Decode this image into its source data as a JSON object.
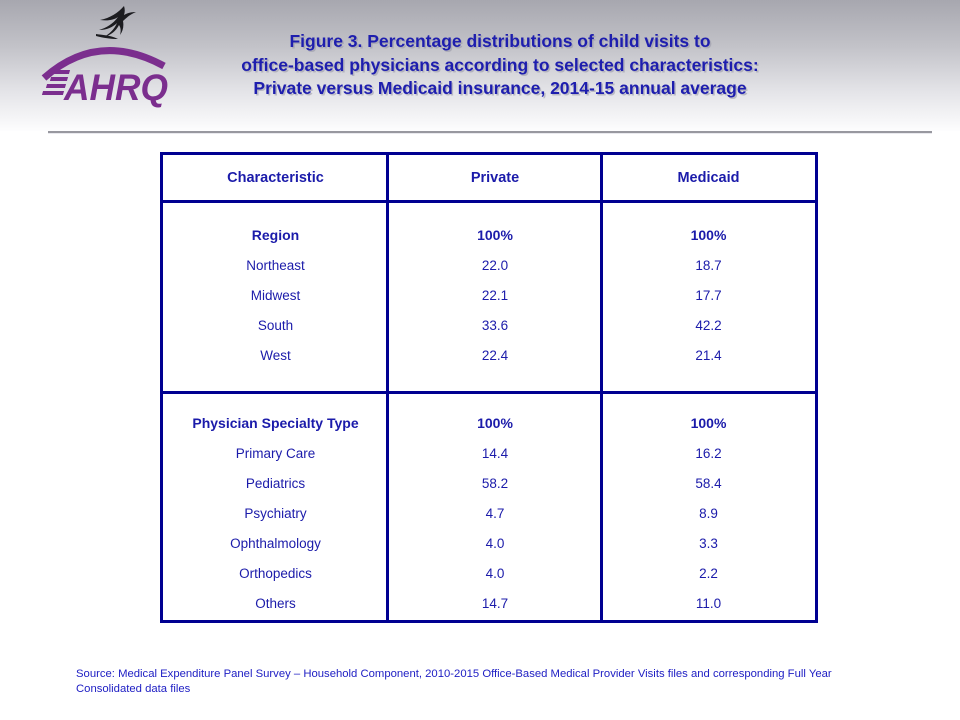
{
  "header": {
    "logo": {
      "wordmark": "AHRQ",
      "eagle_icon": "hhs-eagle-icon"
    },
    "title": "Figure 3. Percentage distributions of child visits to\noffice-based physicians according to selected characteristics:\nPrivate versus Medicaid insurance, 2014-15 annual average"
  },
  "table": {
    "columns": [
      "Characteristic",
      "Private",
      "Medicaid"
    ],
    "sections": [
      {
        "header": {
          "label": "Region",
          "private": "100%",
          "medicaid": "100%"
        },
        "rows": [
          {
            "label": "Northeast",
            "private": "22.0",
            "medicaid": "18.7"
          },
          {
            "label": "Midwest",
            "private": "22.1",
            "medicaid": "17.7"
          },
          {
            "label": "South",
            "private": "33.6",
            "medicaid": "42.2"
          },
          {
            "label": "West",
            "private": "22.4",
            "medicaid": "21.4"
          }
        ]
      },
      {
        "header": {
          "label": "Physician Specialty Type",
          "private": "100%",
          "medicaid": "100%"
        },
        "rows": [
          {
            "label": "Primary Care",
            "private": "14.4",
            "medicaid": "16.2"
          },
          {
            "label": "Pediatrics",
            "private": "58.2",
            "medicaid": "58.4"
          },
          {
            "label": "Psychiatry",
            "private": "4.7",
            "medicaid": "8.9"
          },
          {
            "label": "Ophthalmology",
            "private": "4.0",
            "medicaid": "3.3"
          },
          {
            "label": "Orthopedics",
            "private": "4.0",
            "medicaid": "2.2"
          },
          {
            "label": "Others",
            "private": "14.7",
            "medicaid": "11.0"
          }
        ]
      }
    ]
  },
  "footer": {
    "source": "Source: Medical Expenditure Panel Survey – Household Component, 2010-2015 Office-Based Medical Provider Visits files and corresponding Full Year Consolidated data files"
  },
  "chart_data": {
    "type": "table",
    "title": "Figure 3. Percentage distributions of child visits to office-based physicians according to selected characteristics: Private versus Medicaid insurance, 2014-15 annual average",
    "columns": [
      "Characteristic",
      "Private",
      "Medicaid"
    ],
    "sections": [
      {
        "name": "Region",
        "totals": {
          "Private": "100%",
          "Medicaid": "100%"
        },
        "rows": [
          [
            "Northeast",
            22.0,
            18.7
          ],
          [
            "Midwest",
            22.1,
            17.7
          ],
          [
            "South",
            33.6,
            42.2
          ],
          [
            "West",
            22.4,
            21.4
          ]
        ]
      },
      {
        "name": "Physician Specialty Type",
        "totals": {
          "Private": "100%",
          "Medicaid": "100%"
        },
        "rows": [
          [
            "Primary Care",
            14.4,
            16.2
          ],
          [
            "Pediatrics",
            58.2,
            58.4
          ],
          [
            "Psychiatry",
            4.7,
            8.9
          ],
          [
            "Ophthalmology",
            4.0,
            3.3
          ],
          [
            "Orthopedics",
            4.0,
            2.2
          ],
          [
            "Others",
            14.7,
            11.0
          ]
        ]
      }
    ],
    "source": "Source: Medical Expenditure Panel Survey – Household Component, 2010-2015 Office-Based Medical Provider Visits files and corresponding Full Year Consolidated data files"
  },
  "colors": {
    "title_blue": "#1e1eae",
    "table_border_navy": "#000091",
    "table_text_blue": "#1b1baa",
    "source_blue": "#2020c4",
    "logo_purple": "#7b2e8e",
    "header_gradient_top": "#a7a7af"
  }
}
